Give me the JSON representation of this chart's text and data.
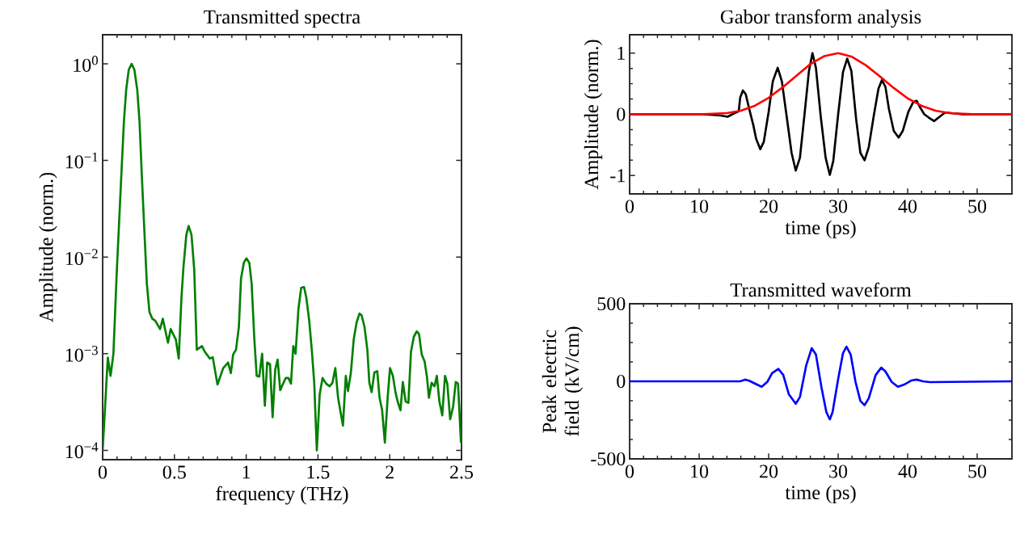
{
  "chart_data": [
    {
      "type": "line",
      "title": "Transmitted spectra",
      "xlabel": "frequency (THz)",
      "ylabel": "Amplitude (norm.)",
      "log": "y",
      "xlim": [
        0,
        2.5
      ],
      "ylim": [
        8e-05,
        2
      ],
      "xticks": [
        0,
        0.5,
        1,
        1.5,
        2,
        2.5
      ],
      "yticks": [
        {
          "value": 0.0001,
          "label": "10$^{−4}$"
        },
        {
          "value": 0.001,
          "label": "10$^{−3}$"
        },
        {
          "value": 0.01,
          "label": "10$^{−2}$"
        },
        {
          "value": 0.1,
          "label": "10$^{−1}$"
        },
        {
          "value": 1,
          "label": "10$^{0}$"
        }
      ],
      "grid": false,
      "series": [
        {
          "color": "#008000",
          "x": [
            0,
            0.036,
            0.055,
            0.075,
            0.099,
            0.128,
            0.148,
            0.164,
            0.182,
            0.202,
            0.221,
            0.241,
            0.257,
            0.273,
            0.292,
            0.308,
            0.326,
            0.346,
            0.366,
            0.4,
            0.419,
            0.455,
            0.474,
            0.51,
            0.53,
            0.549,
            0.563,
            0.583,
            0.599,
            0.619,
            0.638,
            0.656,
            0.692,
            0.711,
            0.747,
            0.767,
            0.8,
            0.84,
            0.874,
            0.893,
            0.909,
            0.929,
            0.949,
            0.964,
            0.984,
            1.002,
            1.022,
            1.038,
            1.057,
            1.073,
            1.091,
            1.111,
            1.13,
            1.146,
            1.166,
            1.184,
            1.202,
            1.219,
            1.237,
            1.275,
            1.294,
            1.312,
            1.328,
            1.344,
            1.364,
            1.383,
            1.403,
            1.419,
            1.439,
            1.458,
            1.474,
            1.492,
            1.512,
            1.532,
            1.557,
            1.581,
            1.601,
            1.621,
            1.64,
            1.674,
            1.694,
            1.709,
            1.729,
            1.749,
            1.769,
            1.789,
            1.804,
            1.824,
            1.844,
            1.858,
            1.874,
            1.893,
            1.913,
            1.929,
            1.947,
            1.966,
            1.986,
            2.002,
            2.022,
            2.04,
            2.055,
            2.075,
            2.091,
            2.111,
            2.13,
            2.148,
            2.168,
            2.188,
            2.204,
            2.223,
            2.243,
            2.259,
            2.273,
            2.292,
            2.312,
            2.328,
            2.346,
            2.366,
            2.385,
            2.401,
            2.421,
            2.441,
            2.46,
            2.476,
            2.496
          ],
          "values": [
            0.0001,
            0.00091,
            0.00059,
            0.001,
            0.0074,
            0.06,
            0.25,
            0.54,
            0.87,
            1.0,
            0.87,
            0.54,
            0.25,
            0.069,
            0.017,
            0.0053,
            0.0027,
            0.0023,
            0.0022,
            0.0018,
            0.0023,
            0.0013,
            0.0018,
            0.0014,
            0.00089,
            0.0038,
            0.0079,
            0.017,
            0.021,
            0.017,
            0.0074,
            0.0011,
            0.0012,
            0.00105,
            0.00089,
            0.00092,
            0.00048,
            0.00071,
            0.00081,
            0.00063,
            0.00098,
            0.0011,
            0.0019,
            0.006,
            0.0088,
            0.0097,
            0.0087,
            0.0053,
            0.0014,
            0.00059,
            0.00058,
            0.001,
            0.00029,
            0.00081,
            0.00078,
            0.00022,
            0.00068,
            0.00087,
            0.00042,
            0.00056,
            0.00056,
            0.00049,
            0.0012,
            0.001,
            0.0029,
            0.0048,
            0.0049,
            0.0038,
            0.0022,
            0.00105,
            0.0005,
            0.0001,
            0.00038,
            0.00056,
            0.00049,
            0.00046,
            0.0005,
            0.00071,
            0.00035,
            0.00018,
            0.00059,
            0.00041,
            0.00063,
            0.0014,
            0.0021,
            0.0026,
            0.0025,
            0.0019,
            0.0011,
            0.0005,
            0.0004,
            0.00064,
            0.00066,
            0.00035,
            0.00026,
            0.00012,
            0.00036,
            0.00071,
            0.00059,
            0.0004,
            0.00032,
            0.00026,
            0.00051,
            0.00032,
            0.00031,
            0.00105,
            0.0015,
            0.0017,
            0.0016,
            0.00098,
            0.00083,
            0.00058,
            0.00035,
            0.0005,
            0.00046,
            0.00059,
            0.00032,
            0.00023,
            0.00059,
            0.00049,
            0.00021,
            0.00028,
            0.00051,
            0.00049,
            0.00012
          ]
        }
      ]
    },
    {
      "type": "line",
      "title": "Gabor transform analysis",
      "xlabel": "time (ps)",
      "ylabel": "Amplitude (norm.)",
      "xlim": [
        0,
        55
      ],
      "ylim": [
        -1.3,
        1.3
      ],
      "xticks": [
        0,
        10,
        20,
        30,
        40,
        50
      ],
      "yticks": [
        -1,
        0,
        1
      ],
      "grid": false,
      "series": [
        {
          "color": "#000000",
          "x": [
            0,
            10.4,
            12,
            13.1,
            14.1,
            15.1,
            15.7,
            15.9,
            16.3,
            16.7,
            17.2,
            17.8,
            18.2,
            18.8,
            19.3,
            20.0,
            20.6,
            21.3,
            21.9,
            22.6,
            23.3,
            23.9,
            24.5,
            25.2,
            25.8,
            26.3,
            26.8,
            27.5,
            28.2,
            28.8,
            29.3,
            30.0,
            30.7,
            31.3,
            31.9,
            32.6,
            33.2,
            33.8,
            34.4,
            35.1,
            35.8,
            36.3,
            36.8,
            37.3,
            38.0,
            38.7,
            39.3,
            40.1,
            40.8,
            41.3,
            41.8,
            42.4,
            43.0,
            43.8,
            44.6,
            45.4,
            46.3,
            47.9,
            55
          ],
          "values": [
            0,
            0,
            -0.01,
            -0.02,
            -0.04,
            0.02,
            0.05,
            0.27,
            0.39,
            0.33,
            0.09,
            -0.18,
            -0.4,
            -0.57,
            -0.45,
            0.04,
            0.54,
            0.76,
            0.54,
            -0.04,
            -0.63,
            -0.92,
            -0.71,
            0.04,
            0.71,
            1.0,
            0.76,
            -0.04,
            -0.71,
            -0.99,
            -0.76,
            0,
            0.69,
            0.91,
            0.71,
            -0.09,
            -0.63,
            -0.75,
            -0.54,
            -0.04,
            0.42,
            0.56,
            0.45,
            0.09,
            -0.27,
            -0.38,
            -0.27,
            0.04,
            0.2,
            0.22,
            0.11,
            0,
            -0.05,
            -0.11,
            -0.04,
            0.03,
            0.02,
            0,
            0
          ]
        },
        {
          "color": "#ff0000",
          "x": [
            0,
            10,
            14,
            16,
            18,
            20,
            22,
            24,
            26,
            28,
            30,
            32,
            34,
            36,
            38,
            40,
            42,
            44,
            46,
            48,
            50,
            55
          ],
          "values": [
            0,
            0,
            0.02,
            0.06,
            0.14,
            0.27,
            0.44,
            0.63,
            0.82,
            0.95,
            1.0,
            0.94,
            0.8,
            0.62,
            0.43,
            0.26,
            0.14,
            0.06,
            0.02,
            0.01,
            0,
            0
          ]
        }
      ]
    },
    {
      "type": "line",
      "title": "Transmitted waveform",
      "xlabel": "time (ps)",
      "ylabel": "Peak electric field (kV/cm)",
      "xlim": [
        0,
        55
      ],
      "ylim": [
        -500,
        500
      ],
      "xticks": [
        0,
        10,
        20,
        30,
        40,
        50
      ],
      "yticks": [
        -500,
        0,
        500
      ],
      "grid": false,
      "series": [
        {
          "color": "#0000ff",
          "x": [
            0,
            15.9,
            16.6,
            17.2,
            18.2,
            19.0,
            19.8,
            20.5,
            21.4,
            22.1,
            22.9,
            23.9,
            24.5,
            25.4,
            26.2,
            26.8,
            27.6,
            28.3,
            28.8,
            29.2,
            30.0,
            30.7,
            31.2,
            31.8,
            32.5,
            33.2,
            33.8,
            34.4,
            35.4,
            36.2,
            36.8,
            37.7,
            38.6,
            39.5,
            40.5,
            41.3,
            42.2,
            43.2,
            55
          ],
          "values": [
            0,
            0,
            11,
            4,
            -18,
            -35,
            -4,
            53,
            80,
            41,
            -83,
            -145,
            -101,
            102,
            214,
            173,
            -39,
            -198,
            -246,
            -198,
            14,
            182,
            223,
            173,
            -4,
            -127,
            -154,
            -110,
            41,
            88,
            64,
            -4,
            -35,
            -21,
            5,
            11,
            0,
            -5,
            0
          ]
        }
      ]
    }
  ]
}
